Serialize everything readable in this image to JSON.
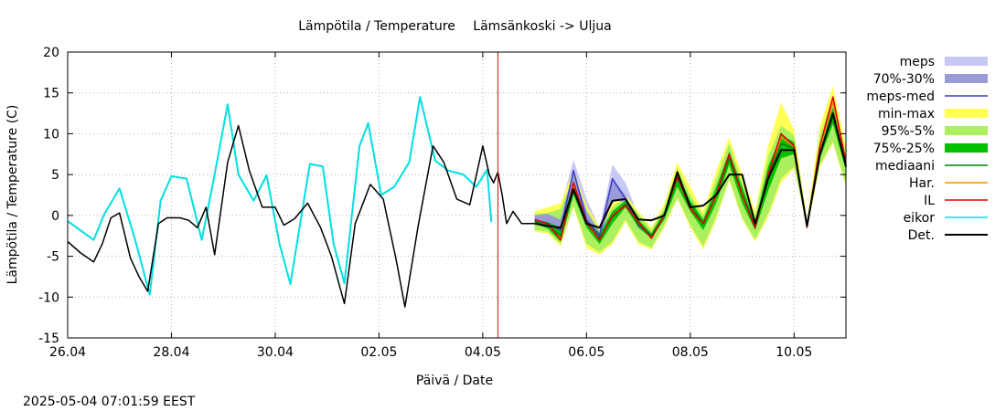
{
  "chart_data": {
    "type": "line",
    "title_left": "Lämpötila / Temperature",
    "title_right": "Lämsänkoski -> Uljua",
    "xlabel": "Päivä / Date",
    "ylabel": "Lämpötila / Temperature (C)",
    "timestamp": "2025-05-04 07:01:59 EEST",
    "ylim": [
      -15,
      20
    ],
    "xlim": [
      "2025-04-26",
      "2025-05-11"
    ],
    "y_ticks": [
      "-15",
      "-10",
      "-5",
      "0",
      "5",
      "10",
      "15",
      "20"
    ],
    "x_ticks": [
      "26.04",
      "28.04",
      "30.04",
      "02.05",
      "04.05",
      "06.05",
      "08.05",
      "10.05"
    ],
    "x_tick_dates": [
      "2025-04-26",
      "2025-04-28",
      "2025-04-30",
      "2025-05-02",
      "2025-05-04",
      "2025-05-06",
      "2025-05-08",
      "2025-05-10"
    ],
    "forecast_start": "2025-05-04 07:00",
    "legend_position": "right",
    "legend": [
      {
        "label": "meps",
        "style": "band",
        "color": "#c8c8f4"
      },
      {
        "label": "70%-30%",
        "style": "band",
        "color": "#9a9ad6"
      },
      {
        "label": "meps-med",
        "style": "line",
        "color": "#3a3acc"
      },
      {
        "label": "min-max",
        "style": "band",
        "color": "#ffff55"
      },
      {
        "label": "95%-5%",
        "style": "band",
        "color": "#aaf060"
      },
      {
        "label": "75%-25%",
        "style": "band",
        "color": "#00c000"
      },
      {
        "label": "mediaani",
        "style": "line",
        "color": "#008000"
      },
      {
        "label": "Har.",
        "style": "line",
        "color": "#ff8c00"
      },
      {
        "label": "IL",
        "style": "line",
        "color": "#dd0000"
      },
      {
        "label": "eikor",
        "style": "line",
        "color": "#00e0e0"
      },
      {
        "label": "Det.",
        "style": "line",
        "color": "#000000"
      }
    ],
    "observed": {
      "eikor": {
        "x": [
          "2025-04-26 00:00",
          "2025-04-26 12:00",
          "2025-04-26 17:00",
          "2025-04-27 00:00",
          "2025-04-27 07:00",
          "2025-04-27 14:00",
          "2025-04-27 19:00",
          "2025-04-28 00:00",
          "2025-04-28 07:00",
          "2025-04-28 14:00",
          "2025-04-28 20:00",
          "2025-04-29 02:00",
          "2025-04-29 07:00",
          "2025-04-29 14:00",
          "2025-04-29 20:00",
          "2025-04-30 02:00",
          "2025-04-30 07:00",
          "2025-04-30 16:00",
          "2025-04-30 22:00",
          "2025-05-01 03:00",
          "2025-05-01 08:00",
          "2025-05-01 15:00",
          "2025-05-01 19:00",
          "2025-05-02 01:00",
          "2025-05-02 07:00",
          "2025-05-02 14:00",
          "2025-05-02 19:00",
          "2025-05-03 02:00",
          "2025-05-03 08:00",
          "2025-05-03 15:00",
          "2025-05-03 21:00",
          "2025-05-04 02:00",
          "2025-05-04 04:00"
        ],
        "y": [
          -0.7,
          -3.0,
          0.2,
          3.3,
          -2.8,
          -9.7,
          1.8,
          4.8,
          4.5,
          -3.0,
          5.0,
          13.6,
          5.0,
          1.8,
          4.9,
          -3.5,
          -8.4,
          6.3,
          6.0,
          -3.5,
          -8.3,
          8.5,
          11.3,
          2.5,
          3.5,
          6.5,
          14.5,
          6.7,
          5.5,
          5.0,
          3.5,
          5.6,
          -0.8
        ]
      },
      "Det.": {
        "x": [
          "2025-04-26 00:00",
          "2025-04-26 06:00",
          "2025-04-26 12:00",
          "2025-04-26 16:00",
          "2025-04-26 20:00",
          "2025-04-27 00:00",
          "2025-04-27 05:00",
          "2025-04-27 09:00",
          "2025-04-27 13:00",
          "2025-04-27 18:00",
          "2025-04-27 22:00",
          "2025-04-28 04:00",
          "2025-04-28 08:00",
          "2025-04-28 12:00",
          "2025-04-28 16:00",
          "2025-04-28 20:00",
          "2025-04-29 02:00",
          "2025-04-29 07:00",
          "2025-04-29 12:00",
          "2025-04-29 18:00",
          "2025-04-30 00:00",
          "2025-04-30 04:00",
          "2025-04-30 09:00",
          "2025-04-30 15:00",
          "2025-04-30 21:00",
          "2025-05-01 02:00",
          "2025-05-01 08:00",
          "2025-05-01 13:00",
          "2025-05-01 20:00",
          "2025-05-02 02:00",
          "2025-05-02 08:00",
          "2025-05-02 12:00",
          "2025-05-02 18:00",
          "2025-05-03 01:00",
          "2025-05-03 06:00",
          "2025-05-03 12:00",
          "2025-05-03 18:00",
          "2025-05-04 00:00",
          "2025-05-04 03:00",
          "2025-05-04 05:00",
          "2025-05-04 07:00"
        ],
        "y": [
          -3.2,
          -4.6,
          -5.7,
          -3.5,
          -0.3,
          0.3,
          -5.2,
          -7.5,
          -9.3,
          -1.0,
          -0.3,
          -0.3,
          -0.6,
          -1.5,
          1.0,
          -4.8,
          6.5,
          11.0,
          5.5,
          1.0,
          1.0,
          -1.2,
          -0.4,
          1.5,
          -1.5,
          -5.0,
          -10.8,
          -1.0,
          3.8,
          2.0,
          -5.5,
          -11.2,
          -1.5,
          8.5,
          6.5,
          2.0,
          1.3,
          8.5,
          5.0,
          4.0,
          5.3
        ]
      }
    },
    "det_continuation": {
      "x": [
        "2025-05-04 07:00",
        "2025-05-04 09:00",
        "2025-05-04 11:00",
        "2025-05-04 14:00",
        "2025-05-04 18:00",
        "2025-05-05 00:00"
      ],
      "y": [
        5.3,
        2.5,
        -1.0,
        0.5,
        -1.0,
        -1.0
      ]
    },
    "forecast": {
      "x": [
        "2025-05-05 00:00",
        "2025-05-05 06:00",
        "2025-05-05 12:00",
        "2025-05-05 18:00",
        "2025-05-06 00:00",
        "2025-05-06 06:00",
        "2025-05-06 12:00",
        "2025-05-06 18:00",
        "2025-05-07 00:00",
        "2025-05-07 06:00",
        "2025-05-07 12:00",
        "2025-05-07 18:00",
        "2025-05-08 00:00",
        "2025-05-08 06:00",
        "2025-05-08 12:00",
        "2025-05-08 18:00",
        "2025-05-09 00:00",
        "2025-05-09 06:00",
        "2025-05-09 12:00",
        "2025-05-09 18:00",
        "2025-05-10 00:00",
        "2025-05-10 06:00",
        "2025-05-10 12:00",
        "2025-05-10 18:00",
        "2025-05-11 00:00"
      ],
      "min": [
        -2.0,
        -2.2,
        -3.8,
        1.0,
        -4.0,
        -4.8,
        -3.5,
        -0.8,
        -3.5,
        -4.2,
        -1.5,
        2.0,
        -1.5,
        -4.2,
        -0.5,
        4.2,
        -0.5,
        -3.2,
        -0.2,
        4.0,
        5.8,
        -1.6,
        6.0,
        8.8,
        3.5
      ],
      "max": [
        0.5,
        1.0,
        1.5,
        5.5,
        1.2,
        -1.5,
        1.5,
        2.5,
        0.5,
        -1.5,
        1.5,
        6.5,
        3.5,
        0.5,
        5.5,
        9.5,
        5.0,
        0.5,
        8.5,
        13.8,
        10.5,
        -0.5,
        11.0,
        15.8,
        8.5
      ],
      "p95": [
        0.2,
        0.3,
        0.8,
        4.8,
        0.8,
        -1.8,
        1.0,
        2.2,
        0.2,
        -1.8,
        1.0,
        5.8,
        2.5,
        0.0,
        4.5,
        8.8,
        4.0,
        0.0,
        7.2,
        11.0,
        9.8,
        -0.7,
        9.8,
        14.5,
        7.5
      ],
      "p5": [
        -1.8,
        -2.0,
        -3.5,
        1.2,
        -3.5,
        -4.5,
        -3.2,
        -0.5,
        -3.2,
        -4.0,
        -1.2,
        2.2,
        -1.2,
        -3.8,
        -0.2,
        4.5,
        -0.3,
        -3.0,
        0.2,
        4.5,
        6.0,
        -1.5,
        6.2,
        9.0,
        3.8
      ],
      "p75": [
        -0.5,
        -0.8,
        -1.5,
        4.2,
        -0.5,
        -2.2,
        0.5,
        1.8,
        -0.5,
        -2.2,
        0.5,
        5.2,
        1.8,
        -0.5,
        3.5,
        7.8,
        3.5,
        -0.8,
        6.0,
        9.8,
        9.0,
        -1.0,
        8.8,
        13.2,
        7.0
      ],
      "p25": [
        -1.0,
        -1.6,
        -3.2,
        2.5,
        -1.5,
        -3.5,
        -1.0,
        1.0,
        -1.5,
        -2.8,
        -0.5,
        3.5,
        0.5,
        -1.8,
        1.5,
        6.2,
        1.5,
        -1.8,
        3.0,
        7.0,
        7.5,
        -1.4,
        7.0,
        11.2,
        5.5
      ],
      "median": [
        -0.8,
        -1.2,
        -2.5,
        3.0,
        -1.0,
        -2.8,
        -0.2,
        1.4,
        -1.0,
        -2.5,
        0.0,
        4.5,
        1.2,
        -1.0,
        2.5,
        7.0,
        2.5,
        -1.2,
        4.8,
        8.8,
        8.2,
        -1.2,
        7.8,
        12.0,
        6.2
      ],
      "meps": {
        "max": [
          0.5,
          0.8,
          1.0,
          6.8,
          2.0,
          -1.5,
          6.2,
          4.0,
          0.0,
          -1.8,
          null,
          null,
          null,
          null,
          null,
          null,
          null,
          null,
          null,
          null,
          null,
          null,
          null,
          null,
          null
        ],
        "min": [
          -2.0,
          -2.2,
          -3.5,
          2.2,
          -3.5,
          -4.0,
          -0.8,
          0.8,
          -2.5,
          -3.5,
          null,
          null,
          null,
          null,
          null,
          null,
          null,
          null,
          null,
          null,
          null,
          null,
          null,
          null,
          null
        ],
        "p70": [
          0.0,
          0.2,
          -0.5,
          5.5,
          0.5,
          -2.0,
          4.5,
          2.5,
          -0.8,
          -2.2,
          null,
          null,
          null,
          null,
          null,
          null,
          null,
          null,
          null,
          null,
          null,
          null,
          null,
          null,
          null
        ],
        "p30": [
          -1.0,
          -1.5,
          -2.5,
          3.5,
          -1.2,
          -3.0,
          2.0,
          1.6,
          -1.5,
          -2.8,
          null,
          null,
          null,
          null,
          null,
          null,
          null,
          null,
          null,
          null,
          null,
          null,
          null,
          null,
          null
        ],
        "med": [
          -0.6,
          -1.0,
          -1.8,
          5.5,
          -0.5,
          -2.5,
          4.5,
          2.0,
          -1.2,
          -2.5,
          null,
          null,
          null,
          null,
          null,
          null,
          null,
          null,
          null,
          null,
          null,
          null,
          null,
          null,
          null
        ]
      },
      "IL": [
        -0.5,
        -1.0,
        -3.0,
        4.0,
        -0.8,
        -3.0,
        0.0,
        1.2,
        -0.8,
        -2.8,
        0.0,
        4.8,
        0.8,
        -1.0,
        2.5,
        7.5,
        2.5,
        -1.5,
        5.0,
        10.0,
        8.5,
        -1.5,
        8.5,
        14.5,
        6.5
      ],
      "Har.": [
        -0.8,
        -1.2,
        -2.8,
        3.6,
        -1.0,
        -3.0,
        0.0,
        1.4,
        -1.0,
        -2.6,
        0.0,
        4.6,
        1.0,
        -1.0,
        2.4,
        7.2,
        2.4,
        -1.4,
        4.6,
        9.6,
        8.4,
        -1.3,
        8.2,
        13.8,
        6.4
      ],
      "Det.": [
        -1.0,
        -1.3,
        -1.5,
        3.2,
        -1.0,
        -1.5,
        1.8,
        2.0,
        -0.5,
        -0.6,
        0.0,
        5.3,
        1.0,
        1.2,
        2.5,
        5.0,
        5.0,
        -1.0,
        4.5,
        8.0,
        8.0,
        -1.3,
        7.5,
        12.5,
        6.0
      ]
    }
  }
}
